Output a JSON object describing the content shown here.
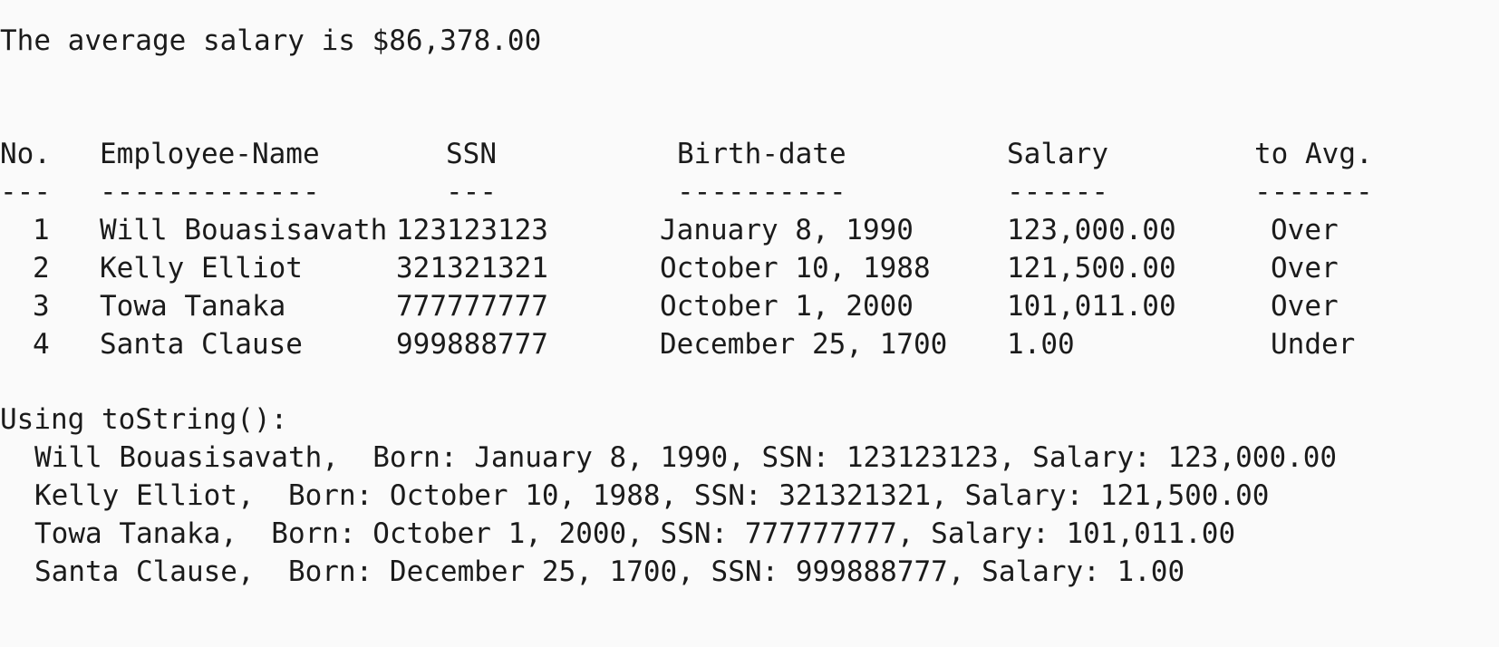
{
  "output": {
    "average_line": "The average salary is $86,378.00",
    "table": {
      "headers": [
        "No.",
        "Employee-Name",
        "SSN",
        "Birth-date",
        "Salary",
        "to Avg."
      ],
      "separators": [
        "---",
        "-------------",
        "---",
        "----------",
        "------",
        "-------"
      ],
      "rows": [
        {
          "no": "1",
          "name": "Will Bouasisavath",
          "ssn": "123123123",
          "birth": "January 8, 1990",
          "salary": "123,000.00",
          "to_avg": "Over"
        },
        {
          "no": "2",
          "name": "Kelly Elliot",
          "ssn": "321321321",
          "birth": "October 10, 1988",
          "salary": "121,500.00",
          "to_avg": "Over"
        },
        {
          "no": "3",
          "name": "Towa Tanaka",
          "ssn": "777777777",
          "birth": "October 1, 2000",
          "salary": "101,011.00",
          "to_avg": "Over"
        },
        {
          "no": "4",
          "name": "Santa Clause",
          "ssn": "999888777",
          "birth": "December 25, 1700",
          "salary": "1.00",
          "to_avg": "Under"
        }
      ]
    },
    "tostring_heading": "Using toString():",
    "tostring_lines": [
      "Will Bouasisavath,  Born: January 8, 1990, SSN: 123123123, Salary: 123,000.00",
      "Kelly Elliot,  Born: October 10, 1988, SSN: 321321321, Salary: 121,500.00",
      "Towa Tanaka,  Born: October 1, 2000, SSN: 777777777, Salary: 101,011.00",
      "Santa Clause,  Born: December 25, 1700, SSN: 999888777, Salary: 1.00"
    ]
  }
}
